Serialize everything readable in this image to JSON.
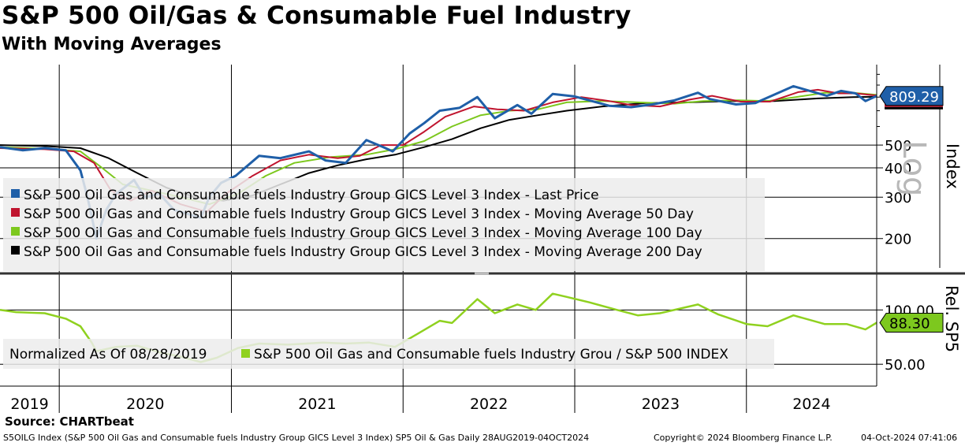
{
  "header": {
    "title": "S&P 500 Oil/Gas & Consumable Fuel Industry",
    "subtitle": "With Moving Averages"
  },
  "colors": {
    "last_price": "#1f5fa8",
    "ma50": "#c0152f",
    "ma100": "#7dc81e",
    "ma200": "#000000",
    "relative": "#8fd11f",
    "badge_price": "#1f5fa8",
    "badge_rel": "#7dc81e"
  },
  "chart_data": [
    {
      "type": "line",
      "panel": "upper",
      "scale": "log",
      "y_axis_label": "Index",
      "scale_label": "Log",
      "y_ticks": [
        200,
        300,
        400,
        500
      ],
      "ylim": [
        150,
        1100
      ],
      "xlim": [
        "2019-08-28",
        "2024-10-04"
      ],
      "x_tick_labels": [
        "2019",
        "2020",
        "2021",
        "2022",
        "2023",
        "2024"
      ],
      "last_value_label": "809.29",
      "legend_placement": "bottom-left",
      "series": [
        {
          "name": "S&P 500 Oil Gas and Consumable fuels Industry Group GICS Level 3 Index - Last Price",
          "points": [
            [
              "2019-08-28",
              490
            ],
            [
              "2019-10-15",
              475
            ],
            [
              "2019-12-01",
              485
            ],
            [
              "2020-01-15",
              475
            ],
            [
              "2020-02-15",
              390
            ],
            [
              "2020-03-01",
              300
            ],
            [
              "2020-03-20",
              200
            ],
            [
              "2020-04-10",
              265
            ],
            [
              "2020-05-01",
              310
            ],
            [
              "2020-06-08",
              355
            ],
            [
              "2020-07-01",
              300
            ],
            [
              "2020-08-01",
              310
            ],
            [
              "2020-09-01",
              265
            ],
            [
              "2020-10-28",
              245
            ],
            [
              "2020-11-15",
              300
            ],
            [
              "2020-12-10",
              345
            ],
            [
              "2021-01-10",
              370
            ],
            [
              "2021-03-01",
              450
            ],
            [
              "2021-04-15",
              440
            ],
            [
              "2021-06-15",
              470
            ],
            [
              "2021-07-20",
              430
            ],
            [
              "2021-09-01",
              420
            ],
            [
              "2021-10-15",
              525
            ],
            [
              "2021-11-20",
              490
            ],
            [
              "2021-12-10",
              470
            ],
            [
              "2022-01-15",
              560
            ],
            [
              "2022-02-15",
              620
            ],
            [
              "2022-03-20",
              700
            ],
            [
              "2022-05-01",
              720
            ],
            [
              "2022-06-08",
              800
            ],
            [
              "2022-07-15",
              650
            ],
            [
              "2022-09-01",
              740
            ],
            [
              "2022-10-01",
              680
            ],
            [
              "2022-11-15",
              825
            ],
            [
              "2023-01-01",
              805
            ],
            [
              "2023-03-15",
              735
            ],
            [
              "2023-05-01",
              725
            ],
            [
              "2023-06-15",
              745
            ],
            [
              "2023-08-01",
              775
            ],
            [
              "2023-09-20",
              835
            ],
            [
              "2023-10-15",
              785
            ],
            [
              "2023-12-10",
              745
            ],
            [
              "2024-01-20",
              755
            ],
            [
              "2024-04-10",
              890
            ],
            [
              "2024-05-15",
              850
            ],
            [
              "2024-06-20",
              810
            ],
            [
              "2024-07-20",
              850
            ],
            [
              "2024-08-20",
              830
            ],
            [
              "2024-09-10",
              770
            ],
            [
              "2024-10-04",
              809
            ]
          ]
        },
        {
          "name": "S&P 500 Oil Gas and Consumable fuels Industry Group GICS Level 3 Index - Moving Average 50 Day",
          "points": [
            [
              "2019-08-28",
              485
            ],
            [
              "2019-12-01",
              480
            ],
            [
              "2020-02-01",
              470
            ],
            [
              "2020-03-15",
              420
            ],
            [
              "2020-04-20",
              320
            ],
            [
              "2020-06-01",
              290
            ],
            [
              "2020-07-15",
              320
            ],
            [
              "2020-09-15",
              280
            ],
            [
              "2020-11-10",
              260
            ],
            [
              "2020-12-20",
              310
            ],
            [
              "2021-02-15",
              370
            ],
            [
              "2021-04-15",
              430
            ],
            [
              "2021-06-15",
              455
            ],
            [
              "2021-08-15",
              440
            ],
            [
              "2021-10-01",
              450
            ],
            [
              "2021-11-15",
              500
            ],
            [
              "2022-01-01",
              500
            ],
            [
              "2022-02-15",
              570
            ],
            [
              "2022-04-01",
              660
            ],
            [
              "2022-06-01",
              730
            ],
            [
              "2022-07-20",
              710
            ],
            [
              "2022-09-15",
              700
            ],
            [
              "2022-11-15",
              760
            ],
            [
              "2023-01-15",
              800
            ],
            [
              "2023-03-15",
              770
            ],
            [
              "2023-05-01",
              740
            ],
            [
              "2023-07-01",
              730
            ],
            [
              "2023-09-01",
              780
            ],
            [
              "2023-10-20",
              810
            ],
            [
              "2023-12-20",
              765
            ],
            [
              "2024-02-20",
              765
            ],
            [
              "2024-04-20",
              840
            ],
            [
              "2024-06-01",
              860
            ],
            [
              "2024-07-15",
              830
            ],
            [
              "2024-08-20",
              830
            ],
            [
              "2024-10-04",
              812
            ]
          ]
        },
        {
          "name": "S&P 500 Oil Gas and Consumable fuels Industry Group GICS Level 3 Index - Moving Average 100 Day",
          "points": [
            [
              "2019-08-28",
              490
            ],
            [
              "2019-12-01",
              482
            ],
            [
              "2020-02-15",
              470
            ],
            [
              "2020-04-01",
              400
            ],
            [
              "2020-05-15",
              340
            ],
            [
              "2020-07-15",
              320
            ],
            [
              "2020-09-15",
              300
            ],
            [
              "2020-11-15",
              280
            ],
            [
              "2021-01-15",
              310
            ],
            [
              "2021-03-15",
              370
            ],
            [
              "2021-05-15",
              420
            ],
            [
              "2021-08-01",
              445
            ],
            [
              "2021-10-15",
              455
            ],
            [
              "2021-12-15",
              480
            ],
            [
              "2022-02-15",
              520
            ],
            [
              "2022-04-15",
              600
            ],
            [
              "2022-06-15",
              670
            ],
            [
              "2022-08-15",
              700
            ],
            [
              "2022-10-15",
              710
            ],
            [
              "2022-12-15",
              760
            ],
            [
              "2023-03-01",
              770
            ],
            [
              "2023-05-15",
              760
            ],
            [
              "2023-08-01",
              750
            ],
            [
              "2023-10-01",
              770
            ],
            [
              "2023-12-15",
              775
            ],
            [
              "2024-02-15",
              770
            ],
            [
              "2024-04-15",
              800
            ],
            [
              "2024-06-15",
              835
            ],
            [
              "2024-08-15",
              835
            ],
            [
              "2024-10-04",
              818
            ]
          ]
        },
        {
          "name": "S&P 500 Oil Gas and Consumable fuels Industry Group GICS Level 3 Index - Moving Average 200 Day",
          "points": [
            [
              "2019-08-28",
              500
            ],
            [
              "2019-12-01",
              495
            ],
            [
              "2020-02-15",
              485
            ],
            [
              "2020-04-15",
              440
            ],
            [
              "2020-06-15",
              380
            ],
            [
              "2020-08-15",
              330
            ],
            [
              "2020-10-15",
              300
            ],
            [
              "2020-12-15",
              290
            ],
            [
              "2021-02-15",
              305
            ],
            [
              "2021-04-15",
              340
            ],
            [
              "2021-06-15",
              380
            ],
            [
              "2021-08-15",
              410
            ],
            [
              "2021-10-15",
              435
            ],
            [
              "2021-12-15",
              455
            ],
            [
              "2022-02-15",
              490
            ],
            [
              "2022-04-15",
              530
            ],
            [
              "2022-06-15",
              590
            ],
            [
              "2022-08-15",
              640
            ],
            [
              "2022-10-15",
              670
            ],
            [
              "2022-12-15",
              700
            ],
            [
              "2023-03-01",
              730
            ],
            [
              "2023-06-01",
              755
            ],
            [
              "2023-09-01",
              760
            ],
            [
              "2023-12-01",
              770
            ],
            [
              "2024-03-01",
              770
            ],
            [
              "2024-06-01",
              790
            ],
            [
              "2024-08-15",
              800
            ],
            [
              "2024-10-04",
              803
            ]
          ]
        }
      ]
    },
    {
      "type": "line",
      "panel": "lower",
      "y_axis_label": "Rel. SP5",
      "y_ticks": [
        50,
        100
      ],
      "y_tick_labels": [
        "50.00",
        "100.00"
      ],
      "ylim": [
        40,
        130
      ],
      "xlim": [
        "2019-08-28",
        "2024-10-04"
      ],
      "last_value_label": "88.30",
      "legend_prefix": "Normalized As Of 08/28/2019",
      "series": [
        {
          "name": "S&P 500 Oil Gas and Consumable fuels Industry Grou / S&P 500 INDEX",
          "points": [
            [
              "2019-08-28",
              100
            ],
            [
              "2019-10-01",
              98
            ],
            [
              "2019-12-01",
              97
            ],
            [
              "2020-01-15",
              92
            ],
            [
              "2020-02-15",
              85
            ],
            [
              "2020-03-10",
              70
            ],
            [
              "2020-03-20",
              62
            ],
            [
              "2020-05-01",
              66
            ],
            [
              "2020-06-15",
              67
            ],
            [
              "2020-08-01",
              61
            ],
            [
              "2020-09-15",
              57
            ],
            [
              "2020-10-28",
              52
            ],
            [
              "2020-12-01",
              56
            ],
            [
              "2021-01-15",
              65
            ],
            [
              "2021-03-01",
              69
            ],
            [
              "2021-05-01",
              68
            ],
            [
              "2021-07-15",
              70
            ],
            [
              "2021-09-01",
              69
            ],
            [
              "2021-10-20",
              70
            ],
            [
              "2021-12-15",
              66
            ],
            [
              "2022-02-01",
              78
            ],
            [
              "2022-03-20",
              90
            ],
            [
              "2022-04-15",
              88
            ],
            [
              "2022-06-08",
              110
            ],
            [
              "2022-07-15",
              97
            ],
            [
              "2022-09-01",
              105
            ],
            [
              "2022-10-10",
              100
            ],
            [
              "2022-11-15",
              115
            ],
            [
              "2022-12-15",
              112
            ],
            [
              "2023-02-01",
              107
            ],
            [
              "2023-04-01",
              100
            ],
            [
              "2023-05-15",
              95
            ],
            [
              "2023-07-01",
              97
            ],
            [
              "2023-09-20",
              105
            ],
            [
              "2023-11-01",
              96
            ],
            [
              "2024-01-01",
              87
            ],
            [
              "2024-02-15",
              85
            ],
            [
              "2024-04-10",
              95
            ],
            [
              "2024-06-15",
              87
            ],
            [
              "2024-08-01",
              87
            ],
            [
              "2024-09-10",
              82
            ],
            [
              "2024-10-04",
              88.3
            ]
          ]
        }
      ]
    }
  ],
  "source_label": "Source: CHARTbeat",
  "footer": {
    "left": "S5OILG Index (S&P 500 Oil Gas and Consumable fuels Industry Group GICS Level 3 Index) SP5 Oil & Gas  Daily 28AUG2019-04OCT2024",
    "copyright": "Copyright© 2024 Bloomberg Finance L.P.",
    "timestamp": "04-Oct-2024 07:41:06"
  }
}
